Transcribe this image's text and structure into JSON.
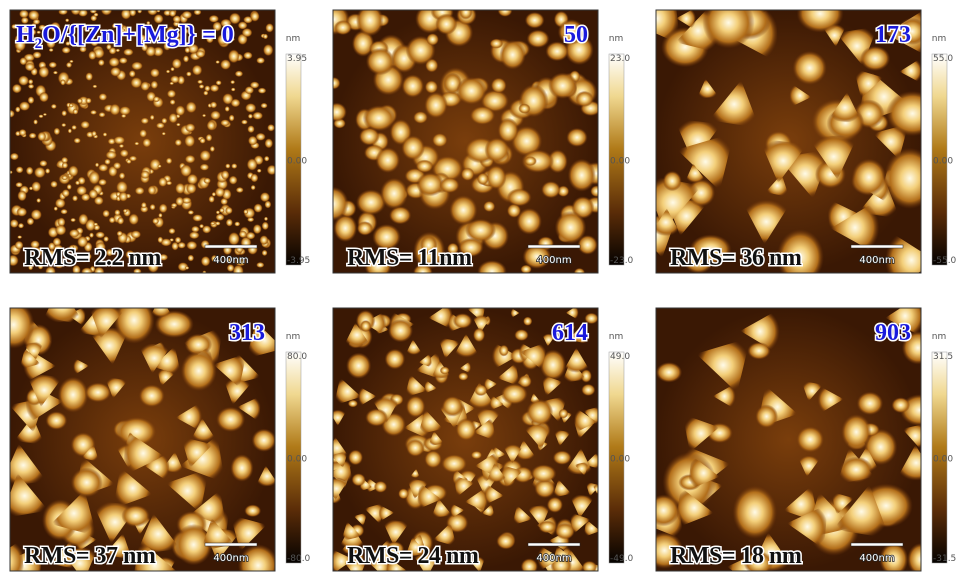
{
  "panels": [
    {
      "label": [
        "H",
        "2",
        "O/{[Zn]+[Mg]} = 0"
      ],
      "rms": "RMS= 2.2 nm",
      "scale_bar": "400nm",
      "unit": "nm",
      "colorbar": [
        "3.95",
        "0.00",
        "-3.95"
      ]
    },
    {
      "label": [
        "50"
      ],
      "rms": "RMS= 11nm",
      "scale_bar": "400nm",
      "unit": "nm",
      "colorbar": [
        "23.0",
        "0.00",
        "-23.0"
      ]
    },
    {
      "label": [
        "173"
      ],
      "rms": "RMS= 36 nm",
      "scale_bar": "400nm",
      "unit": "nm",
      "colorbar": [
        "55.0",
        "0.00",
        "-55.0"
      ]
    },
    {
      "label": [
        "313"
      ],
      "rms": "RMS= 37 nm",
      "scale_bar": "400nm",
      "unit": "nm",
      "colorbar": [
        "80.0",
        "0.00",
        "-80.0"
      ]
    },
    {
      "label": [
        "614"
      ],
      "rms": "RMS= 24 nm",
      "scale_bar": "400nm",
      "unit": "nm",
      "colorbar": [
        "49.0",
        "0.00",
        "-49.0"
      ]
    },
    {
      "label": [
        "903"
      ],
      "rms": "RMS= 18 nm",
      "scale_bar": "400nm",
      "unit": "nm",
      "colorbar": [
        "31.5",
        "0.00",
        "-31.5"
      ]
    }
  ]
}
